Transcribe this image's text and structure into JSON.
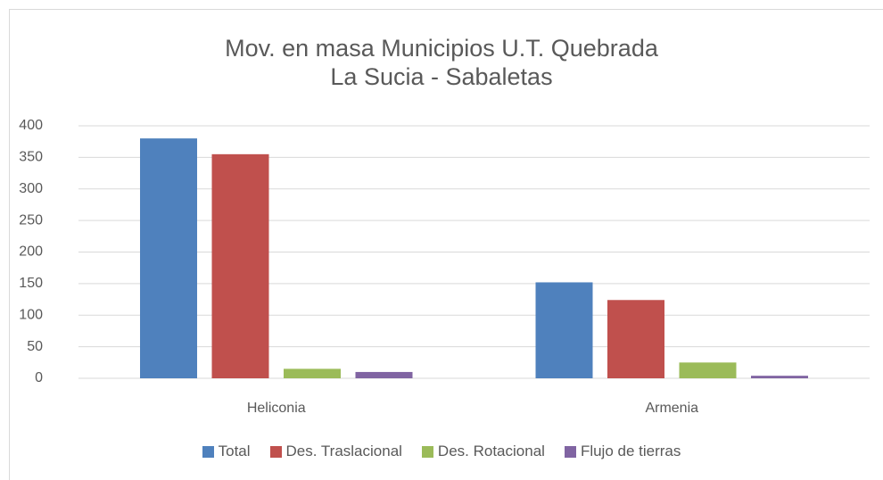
{
  "chart_data": {
    "type": "bar",
    "title": "Mov. en masa Municipios U.T. Quebrada La Sucia - Sabaletas",
    "categories": [
      "Heliconia",
      "Armenia"
    ],
    "series": [
      {
        "name": "Total",
        "color": "#4f81bd",
        "values": [
          380,
          152
        ]
      },
      {
        "name": "Des. Traslacional",
        "color": "#c0504d",
        "values": [
          355,
          124
        ]
      },
      {
        "name": "Des. Rotacional",
        "color": "#9bbb59",
        "values": [
          15,
          25
        ]
      },
      {
        "name": "Flujo de tierras",
        "color": "#8064a2",
        "values": [
          10,
          4
        ]
      }
    ],
    "ylim": [
      0,
      400
    ],
    "yticks": [
      0,
      50,
      100,
      150,
      200,
      250,
      300,
      350,
      400
    ],
    "grid": true,
    "legend": "bottom"
  }
}
